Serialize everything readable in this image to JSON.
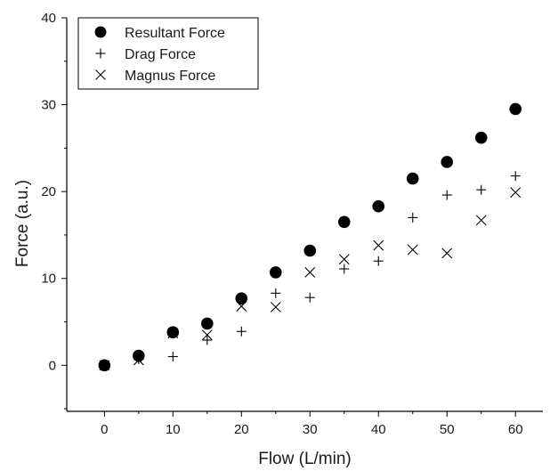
{
  "chart_data": {
    "type": "scatter",
    "title": "",
    "xlabel": "Flow (L/min)",
    "ylabel": "Force (a.u.)",
    "xlim": [
      -5.5,
      64
    ],
    "ylim": [
      -5.3,
      40
    ],
    "x_ticks": [
      0,
      10,
      20,
      30,
      40,
      50,
      60
    ],
    "y_ticks": [
      0,
      10,
      20,
      30,
      40
    ],
    "grid": false,
    "legend_position": "top-left",
    "x": [
      0,
      5,
      10,
      15,
      20,
      25,
      30,
      35,
      40,
      45,
      50,
      55,
      60
    ],
    "series": [
      {
        "name": "Resultant Force",
        "marker": "filled-circle",
        "values": [
          0,
          1.1,
          3.8,
          4.8,
          7.7,
          10.7,
          13.2,
          16.5,
          18.3,
          21.5,
          23.4,
          26.2,
          29.5
        ]
      },
      {
        "name": "Drag Force",
        "marker": "plus",
        "values": [
          0,
          0.7,
          1.0,
          2.9,
          3.9,
          8.3,
          7.8,
          11.1,
          12.0,
          17.0,
          19.6,
          20.2,
          21.8
        ]
      },
      {
        "name": "Magnus Force",
        "marker": "cross",
        "values": [
          0,
          0.6,
          3.7,
          3.5,
          6.8,
          6.7,
          10.7,
          12.2,
          13.8,
          13.3,
          12.9,
          16.7,
          19.9
        ]
      }
    ],
    "colors": {
      "marker": "#000000",
      "axis": "#000000"
    }
  }
}
